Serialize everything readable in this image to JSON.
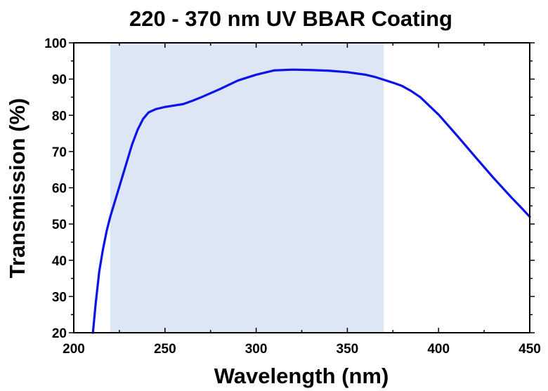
{
  "chart_data": {
    "type": "line",
    "title": "220 - 370 nm UV BBAR Coating",
    "xlabel": "Wavelength (nm)",
    "ylabel": "Transmission (%)",
    "xlim": [
      200,
      450
    ],
    "ylim": [
      20,
      100
    ],
    "xticks": [
      200,
      250,
      300,
      350,
      400,
      450
    ],
    "yticks": [
      20,
      30,
      40,
      50,
      60,
      70,
      80,
      90,
      100
    ],
    "xtick_labels": [
      "200",
      "250",
      "300",
      "350",
      "400",
      "450"
    ],
    "ytick_labels": [
      "20",
      "30",
      "40",
      "50",
      "60",
      "70",
      "80",
      "90",
      "100"
    ],
    "grid": false,
    "shaded_band": {
      "x_start": 220,
      "x_end": 370,
      "color": "#dce6f5"
    },
    "series": [
      {
        "color": "#0a14e6",
        "x": [
          210.5,
          212,
          214,
          216,
          218,
          220,
          223,
          226,
          229,
          232,
          235,
          238,
          241,
          245,
          250,
          255,
          260,
          265,
          270,
          280,
          290,
          300,
          310,
          320,
          330,
          340,
          350,
          360,
          365,
          370,
          375,
          380,
          385,
          390,
          400,
          410,
          420,
          430,
          440,
          445,
          450
        ],
        "y": [
          20,
          28,
          37,
          43,
          48,
          52,
          57,
          62,
          67,
          72,
          76,
          79,
          80.8,
          81.7,
          82.3,
          82.7,
          83.1,
          84,
          85,
          87.2,
          89.6,
          91.2,
          92.4,
          92.6,
          92.5,
          92.3,
          91.9,
          91.2,
          90.6,
          89.8,
          89,
          88.1,
          86.7,
          85,
          80.2,
          74.5,
          68.6,
          62.8,
          57.3,
          54.7,
          52
        ]
      }
    ]
  }
}
